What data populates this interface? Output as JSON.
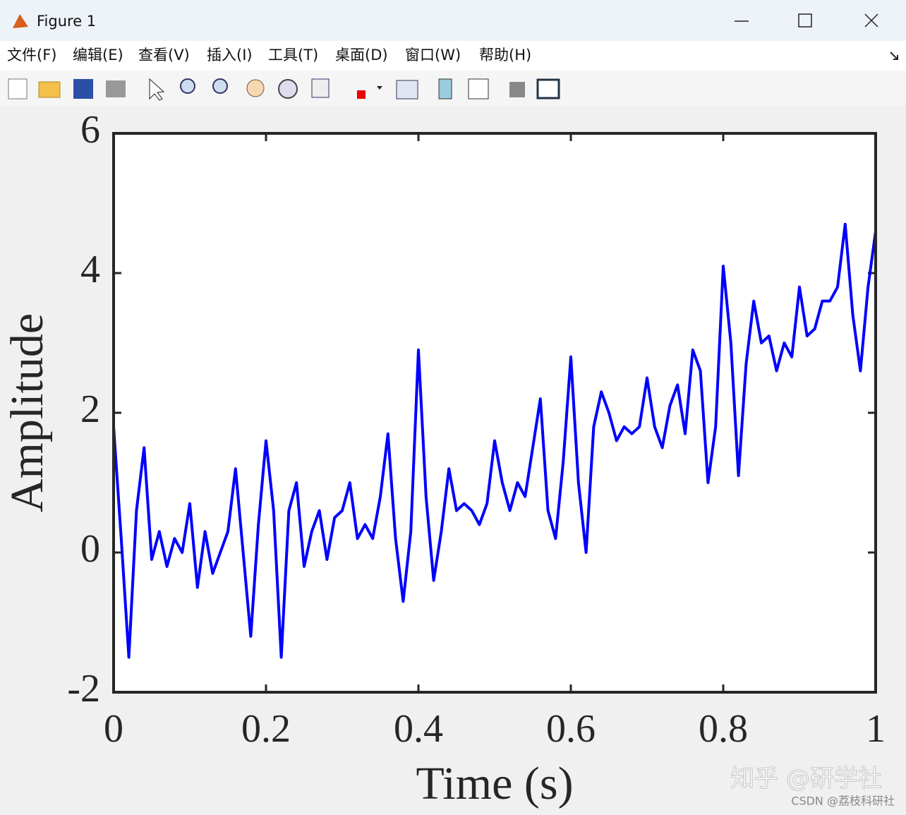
{
  "window": {
    "title": "Figure 1",
    "menu": [
      "文件(F)",
      "编辑(E)",
      "查看(V)",
      "插入(I)",
      "工具(T)",
      "桌面(D)",
      "窗口(W)",
      "帮助(H)"
    ],
    "watermarks": [
      "知乎 @研学社",
      "CSDN @荔枝科研社"
    ]
  },
  "chart_data": {
    "type": "line",
    "xlabel": "Time (s)",
    "ylabel": "Amplitude",
    "color": "#0000ff",
    "x": [
      0,
      0.01,
      0.02,
      0.03,
      0.04,
      0.05,
      0.06,
      0.07,
      0.08,
      0.09,
      0.1,
      0.11,
      0.12,
      0.13,
      0.14,
      0.15,
      0.16,
      0.17,
      0.18,
      0.19,
      0.2,
      0.21,
      0.22,
      0.23,
      0.24,
      0.25,
      0.26,
      0.27,
      0.28,
      0.29,
      0.3,
      0.31,
      0.32,
      0.33,
      0.34,
      0.35,
      0.36,
      0.37,
      0.38,
      0.39,
      0.4,
      0.41,
      0.42,
      0.43,
      0.44,
      0.45,
      0.46,
      0.47,
      0.48,
      0.49,
      0.5,
      0.51,
      0.52,
      0.53,
      0.54,
      0.55,
      0.56,
      0.57,
      0.58,
      0.59,
      0.6,
      0.61,
      0.62,
      0.63,
      0.64,
      0.65,
      0.66,
      0.67,
      0.68,
      0.69,
      0.7,
      0.71,
      0.72,
      0.73,
      0.74,
      0.75,
      0.76,
      0.77,
      0.78,
      0.79,
      0.8,
      0.81,
      0.82,
      0.83,
      0.84,
      0.85,
      0.86,
      0.87,
      0.88,
      0.89,
      0.9,
      0.91,
      0.92,
      0.93,
      0.94,
      0.95,
      0.96,
      0.97,
      0.98,
      0.99,
      1
    ],
    "values": [
      1.8,
      0.2,
      -1.5,
      0.6,
      1.5,
      -0.1,
      0.3,
      -0.2,
      0.2,
      0.0,
      0.7,
      -0.5,
      0.3,
      -0.3,
      0.0,
      0.3,
      1.2,
      0.0,
      -1.2,
      0.4,
      1.6,
      0.6,
      -1.5,
      0.6,
      1.0,
      -0.2,
      0.3,
      0.6,
      -0.1,
      0.5,
      0.6,
      1.0,
      0.2,
      0.4,
      0.2,
      0.8,
      1.7,
      0.2,
      -0.7,
      0.3,
      2.9,
      0.8,
      -0.4,
      0.3,
      1.2,
      0.6,
      0.7,
      0.6,
      0.4,
      0.7,
      1.6,
      1.0,
      0.6,
      1.0,
      0.8,
      1.5,
      2.2,
      0.6,
      0.2,
      1.3,
      2.8,
      1.0,
      0.0,
      1.8,
      2.3,
      2.0,
      1.6,
      1.8,
      1.7,
      1.8,
      2.5,
      1.8,
      1.5,
      2.1,
      2.4,
      1.7,
      2.9,
      2.6,
      1.0,
      1.8,
      4.1,
      3.0,
      1.1,
      2.7,
      3.6,
      3.0,
      3.1,
      2.6,
      3.0,
      2.8,
      3.8,
      3.1,
      3.2,
      3.6,
      3.6,
      3.8,
      4.7,
      3.4,
      2.6,
      3.8,
      4.6
    ],
    "xlim": [
      0,
      1
    ],
    "ylim": [
      -2,
      6
    ],
    "xticks": [
      0,
      0.2,
      0.4,
      0.6,
      0.8,
      1
    ],
    "yticks": [
      -2,
      0,
      2,
      4,
      6
    ]
  }
}
